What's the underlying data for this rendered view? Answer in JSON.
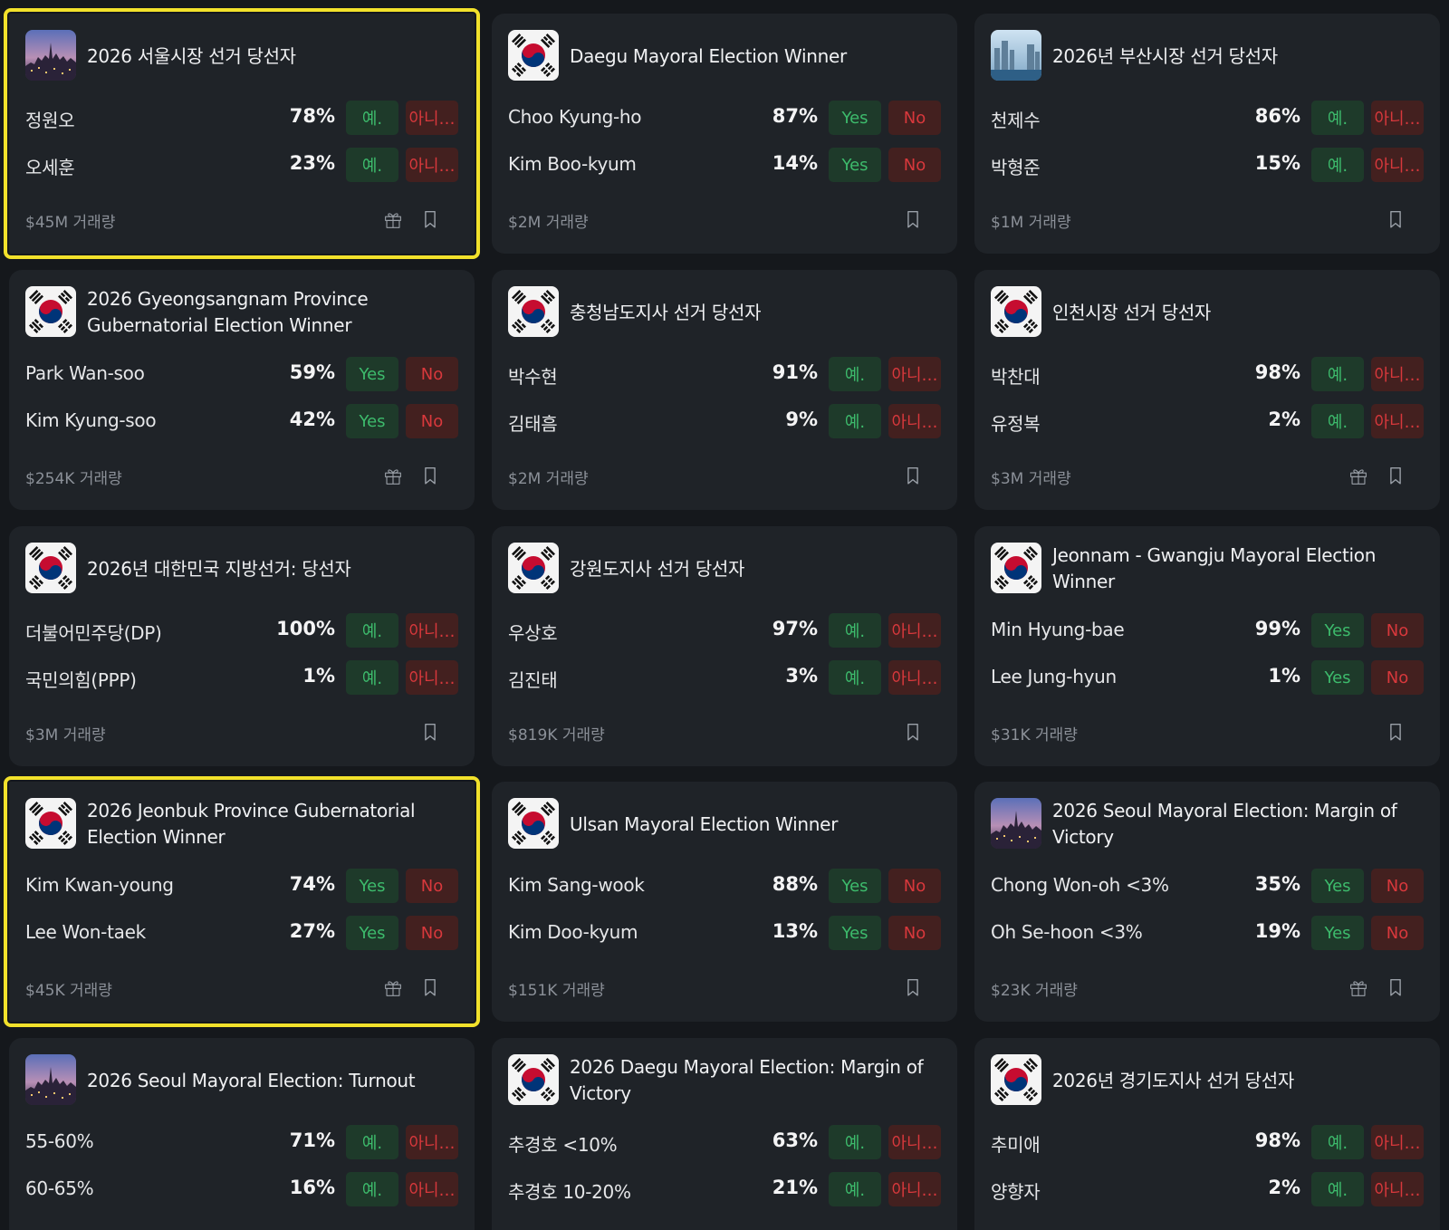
{
  "cards": [
    {
      "title": "2026 서울시장 선거 당선자",
      "icon": "city",
      "highlighted": true,
      "gift": true,
      "buttons": [
        "예.",
        "아니…"
      ],
      "outcomes": [
        {
          "name": "정원오",
          "chance": "78%"
        },
        {
          "name": "오세훈",
          "chance": "23%"
        }
      ],
      "volume": "$45M 거래량"
    },
    {
      "title": "Daegu Mayoral Election Winner",
      "icon": "flag",
      "highlighted": false,
      "gift": false,
      "buttons": [
        "Yes",
        "No"
      ],
      "outcomes": [
        {
          "name": "Choo Kyung-ho",
          "chance": "87%"
        },
        {
          "name": "Kim Boo-kyum",
          "chance": "14%"
        }
      ],
      "volume": "$2M 거래량"
    },
    {
      "title": "2026년 부산시장 선거 당선자",
      "icon": "harbor",
      "highlighted": false,
      "gift": false,
      "buttons": [
        "예.",
        "아니…"
      ],
      "outcomes": [
        {
          "name": "천제수",
          "chance": "86%"
        },
        {
          "name": "박형준",
          "chance": "15%"
        }
      ],
      "volume": "$1M 거래량"
    },
    {
      "title": "2026 Gyeongsangnam Province Gubernatorial Election Winner",
      "icon": "flag",
      "highlighted": false,
      "gift": true,
      "buttons": [
        "Yes",
        "No"
      ],
      "outcomes": [
        {
          "name": "Park Wan-soo",
          "chance": "59%"
        },
        {
          "name": "Kim Kyung-soo",
          "chance": "42%"
        }
      ],
      "volume": "$254K 거래량"
    },
    {
      "title": "충청남도지사 선거 당선자",
      "icon": "flag",
      "highlighted": false,
      "gift": false,
      "buttons": [
        "예.",
        "아니…"
      ],
      "outcomes": [
        {
          "name": "박수현",
          "chance": "91%"
        },
        {
          "name": "김태흠",
          "chance": "9%"
        }
      ],
      "volume": "$2M 거래량"
    },
    {
      "title": "인천시장 선거 당선자",
      "icon": "flag",
      "highlighted": false,
      "gift": true,
      "buttons": [
        "예.",
        "아니…"
      ],
      "outcomes": [
        {
          "name": "박찬대",
          "chance": "98%"
        },
        {
          "name": "유정복",
          "chance": "2%"
        }
      ],
      "volume": "$3M 거래량"
    },
    {
      "title": "2026년 대한민국 지방선거: 당선자",
      "icon": "flag",
      "highlighted": false,
      "gift": false,
      "buttons": [
        "예.",
        "아니…"
      ],
      "outcomes": [
        {
          "name": "더불어민주당(DP)",
          "chance": "100%"
        },
        {
          "name": "국민의힘(PPP)",
          "chance": "1%"
        }
      ],
      "volume": "$3M 거래량"
    },
    {
      "title": "강원도지사 선거 당선자",
      "icon": "flag",
      "highlighted": false,
      "gift": false,
      "buttons": [
        "예.",
        "아니…"
      ],
      "outcomes": [
        {
          "name": "우상호",
          "chance": "97%"
        },
        {
          "name": "김진태",
          "chance": "3%"
        }
      ],
      "volume": "$819K 거래량"
    },
    {
      "title": "Jeonnam - Gwangju Mayoral Election Winner",
      "icon": "flag",
      "highlighted": false,
      "gift": false,
      "buttons": [
        "Yes",
        "No"
      ],
      "outcomes": [
        {
          "name": "Min Hyung-bae",
          "chance": "99%"
        },
        {
          "name": "Lee Jung-hyun",
          "chance": "1%"
        }
      ],
      "volume": "$31K 거래량"
    },
    {
      "title": "2026 Jeonbuk Province Gubernatorial Election Winner",
      "icon": "flag",
      "highlighted": true,
      "gift": true,
      "buttons": [
        "Yes",
        "No"
      ],
      "outcomes": [
        {
          "name": "Kim Kwan-young",
          "chance": "74%"
        },
        {
          "name": "Lee Won-taek",
          "chance": "27%"
        }
      ],
      "volume": "$45K 거래량"
    },
    {
      "title": "Ulsan Mayoral Election Winner",
      "icon": "flag",
      "highlighted": false,
      "gift": false,
      "buttons": [
        "Yes",
        "No"
      ],
      "outcomes": [
        {
          "name": "Kim Sang-wook",
          "chance": "88%"
        },
        {
          "name": "Kim Doo-kyum",
          "chance": "13%"
        }
      ],
      "volume": "$151K 거래량"
    },
    {
      "title": "2026 Seoul Mayoral Election: Margin of Victory",
      "icon": "city",
      "highlighted": false,
      "gift": true,
      "buttons": [
        "Yes",
        "No"
      ],
      "outcomes": [
        {
          "name": "Chong Won-oh <3%",
          "chance": "35%"
        },
        {
          "name": "Oh Se-hoon <3%",
          "chance": "19%"
        }
      ],
      "volume": "$23K 거래량"
    },
    {
      "title": "2026 Seoul Mayoral Election: Turnout",
      "icon": "city",
      "highlighted": false,
      "gift": false,
      "buttons": [
        "예.",
        "아니…"
      ],
      "outcomes": [
        {
          "name": "55-60%",
          "chance": "71%"
        },
        {
          "name": "60-65%",
          "chance": "16%"
        }
      ]
    },
    {
      "title": "2026 Daegu Mayoral Election: Margin of Victory",
      "icon": "flag",
      "highlighted": false,
      "gift": false,
      "buttons": [
        "예.",
        "아니…"
      ],
      "outcomes": [
        {
          "name": "추경호 <10%",
          "chance": "63%"
        },
        {
          "name": "추경호 10-20%",
          "chance": "21%"
        }
      ]
    },
    {
      "title": "2026년 경기도지사 선거 당선자",
      "icon": "flag",
      "highlighted": false,
      "gift": false,
      "buttons": [
        "예.",
        "아니…"
      ],
      "outcomes": [
        {
          "name": "추미애",
          "chance": "98%"
        },
        {
          "name": "양향자",
          "chance": "2%"
        }
      ]
    }
  ]
}
